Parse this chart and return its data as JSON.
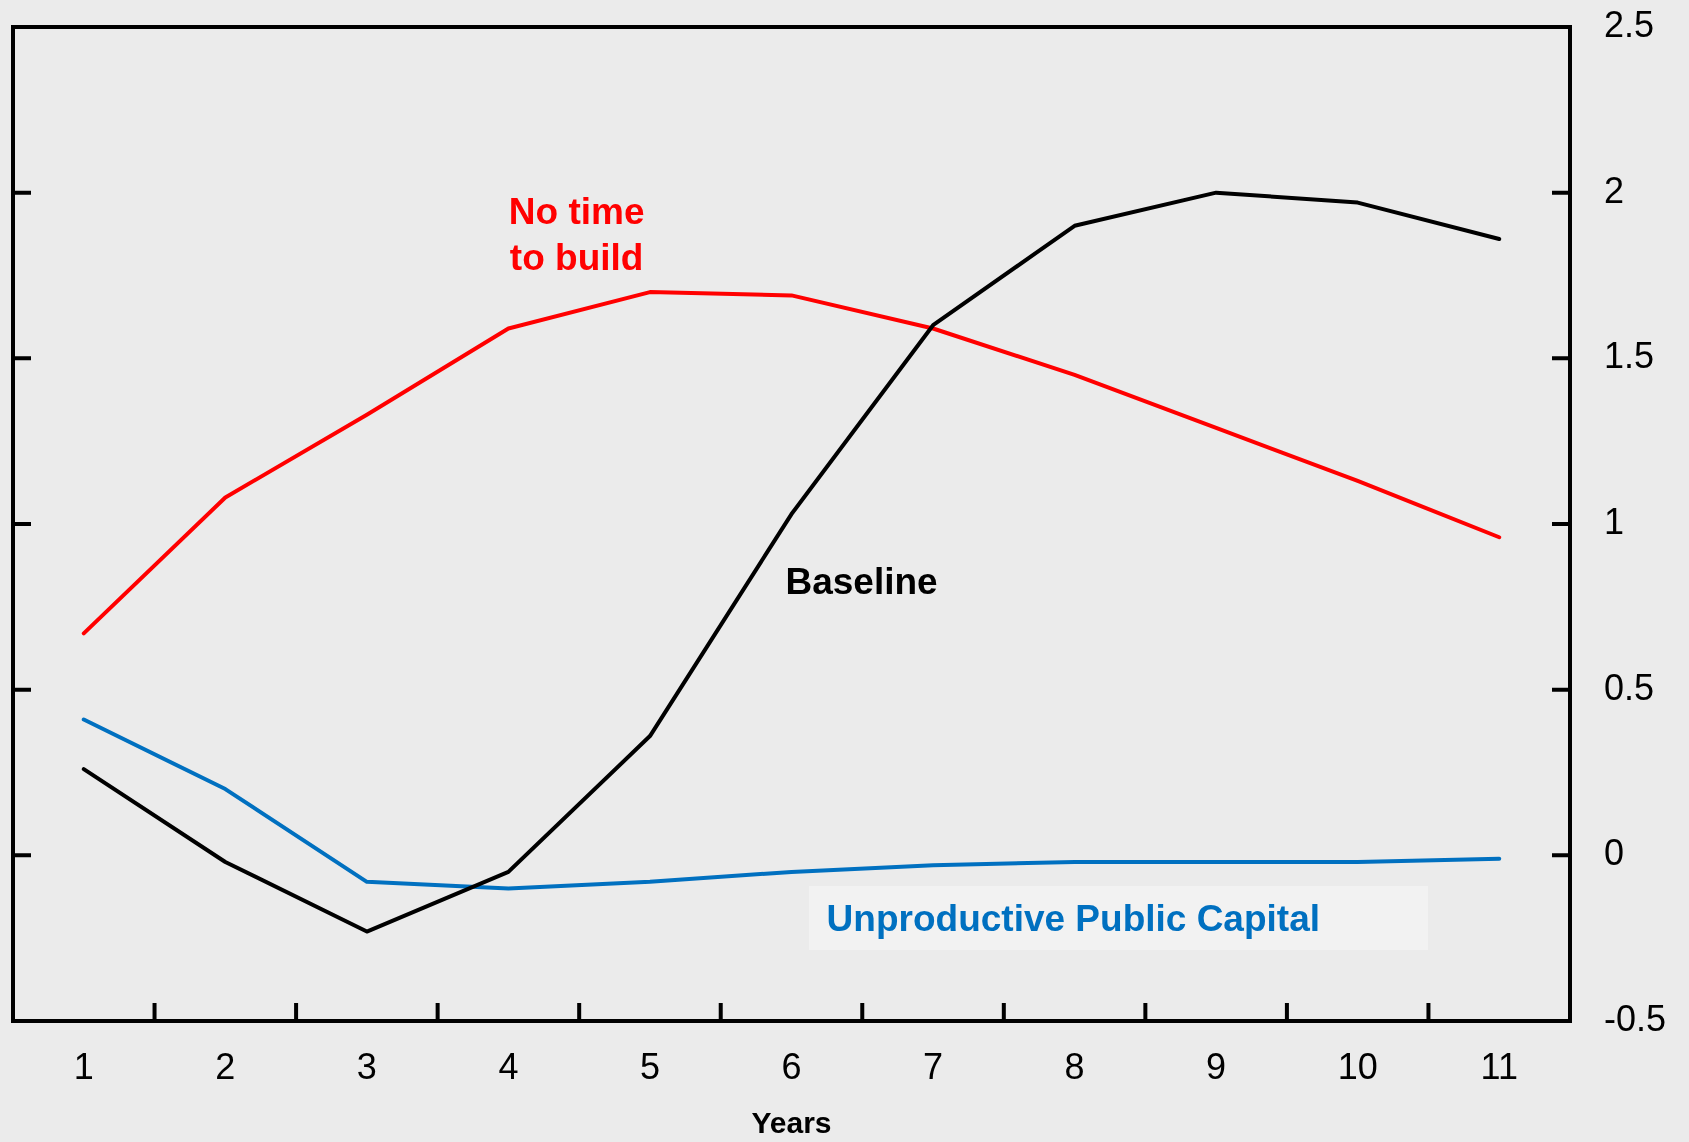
{
  "chart_data": {
    "type": "line",
    "xlabel": "Years",
    "categories": [
      "1",
      "2",
      "3",
      "4",
      "5",
      "6",
      "7",
      "8",
      "9",
      "10",
      "11"
    ],
    "series": [
      {
        "name": "Baseline",
        "color": "#000000",
        "values": [
          0.26,
          -0.02,
          -0.23,
          -0.05,
          0.36,
          1.03,
          1.6,
          1.9,
          2.0,
          1.97,
          1.86
        ]
      },
      {
        "name": "No time to build",
        "color": "#ff0000",
        "values": [
          0.67,
          1.08,
          1.33,
          1.59,
          1.7,
          1.69,
          1.59,
          1.45,
          1.29,
          1.13,
          0.96
        ]
      },
      {
        "name": "Unproductive Public Capital",
        "color": "#0070c0",
        "values": [
          0.41,
          0.2,
          -0.08,
          -0.1,
          -0.08,
          -0.05,
          -0.03,
          -0.02,
          -0.02,
          -0.02,
          -0.01
        ]
      }
    ],
    "ylim": [
      -0.5,
      2.5
    ],
    "yticks": [
      -0.5,
      0,
      0.5,
      1,
      1.5,
      2,
      2.5
    ]
  }
}
